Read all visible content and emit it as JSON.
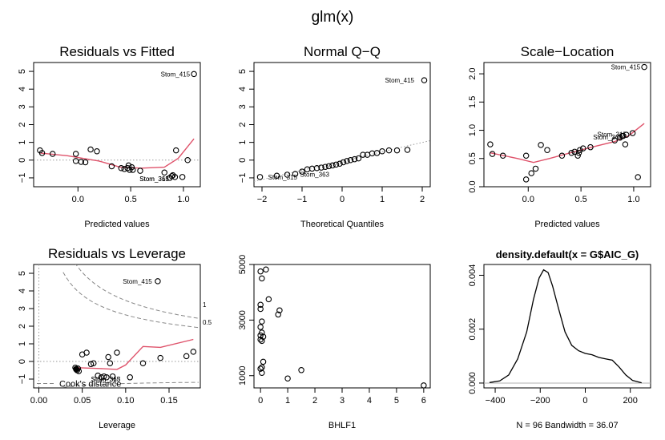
{
  "page_title": "glm(x)",
  "chart_data": [
    {
      "id": "rvf",
      "type": "scatter",
      "title": "Residuals vs Fitted",
      "xlabel": "Predicted values",
      "ylabel": "",
      "xlim": [
        -0.42,
        1.16
      ],
      "ylim": [
        -1.5,
        5.5
      ],
      "xticks": [
        0.0,
        0.5,
        1.0
      ],
      "xtick_labels": [
        "0.0",
        "0.5",
        "1.0"
      ],
      "yticks": [
        -1,
        0,
        1,
        2,
        3,
        4,
        5
      ],
      "ytick_labels": [
        "−1",
        "0",
        "1",
        "2",
        "3",
        "4",
        "5"
      ],
      "points": [
        [
          -0.36,
          0.55
        ],
        [
          -0.34,
          0.4
        ],
        [
          -0.24,
          0.35
        ],
        [
          -0.02,
          -0.05
        ],
        [
          -0.02,
          0.35
        ],
        [
          0.03,
          -0.1
        ],
        [
          0.07,
          -0.12
        ],
        [
          0.12,
          0.6
        ],
        [
          0.18,
          0.5
        ],
        [
          0.32,
          -0.35
        ],
        [
          0.41,
          -0.45
        ],
        [
          0.44,
          -0.5
        ],
        [
          0.47,
          -0.45
        ],
        [
          0.48,
          -0.3
        ],
        [
          0.49,
          -0.55
        ],
        [
          0.51,
          -0.4
        ],
        [
          0.52,
          -0.55
        ],
        [
          0.59,
          -0.6
        ],
        [
          0.82,
          -0.7
        ],
        [
          0.87,
          -1.0
        ],
        [
          0.89,
          -0.9
        ],
        [
          0.9,
          -0.85
        ],
        [
          0.92,
          -0.95
        ],
        [
          0.93,
          0.55
        ],
        [
          0.99,
          -0.95
        ],
        [
          1.04,
          0.0
        ],
        [
          1.1,
          4.85
        ]
      ],
      "smooth": [
        [
          -0.36,
          0.4
        ],
        [
          -0.1,
          0.25
        ],
        [
          0.2,
          -0.05
        ],
        [
          0.4,
          -0.4
        ],
        [
          0.6,
          -0.45
        ],
        [
          0.82,
          -0.4
        ],
        [
          0.95,
          0.1
        ],
        [
          1.1,
          1.2
        ]
      ],
      "ref_line": 0,
      "labels": [
        {
          "text": "Stom_415",
          "x": 1.1,
          "y": 4.85,
          "anchor": "end"
        },
        {
          "text": "Stom_315",
          "x": 0.9,
          "y": -1.05,
          "anchor": "end"
        },
        {
          "text": "Stom_363",
          "x": 0.9,
          "y": -1.05,
          "anchor": "end"
        }
      ]
    },
    {
      "id": "qq",
      "type": "scatter",
      "title": "Normal Q−Q",
      "xlabel": "Theoretical Quantiles",
      "ylabel": "",
      "xlim": [
        -2.2,
        2.2
      ],
      "ylim": [
        -1.5,
        5.5
      ],
      "xticks": [
        -2,
        -1,
        0,
        1,
        2
      ],
      "xtick_labels": [
        "−2",
        "−1",
        "0",
        "1",
        "2"
      ],
      "yticks": [
        -1,
        0,
        1,
        2,
        3,
        4,
        5
      ],
      "ytick_labels": [
        "−1",
        "0",
        "1",
        "2",
        "3",
        "4",
        "5"
      ],
      "points": [
        [
          -2.05,
          -0.95
        ],
        [
          -1.63,
          -0.88
        ],
        [
          -1.37,
          -0.82
        ],
        [
          -1.17,
          -0.78
        ],
        [
          -1.0,
          -0.65
        ],
        [
          -0.87,
          -0.52
        ],
        [
          -0.75,
          -0.48
        ],
        [
          -0.63,
          -0.45
        ],
        [
          -0.52,
          -0.42
        ],
        [
          -0.42,
          -0.38
        ],
        [
          -0.33,
          -0.34
        ],
        [
          -0.24,
          -0.3
        ],
        [
          -0.15,
          -0.25
        ],
        [
          -0.06,
          -0.2
        ],
        [
          0.03,
          -0.12
        ],
        [
          0.12,
          -0.05
        ],
        [
          0.21,
          0.0
        ],
        [
          0.31,
          0.05
        ],
        [
          0.41,
          0.1
        ],
        [
          0.52,
          0.3
        ],
        [
          0.63,
          0.3
        ],
        [
          0.75,
          0.38
        ],
        [
          0.87,
          0.4
        ],
        [
          1.0,
          0.5
        ],
        [
          1.17,
          0.55
        ],
        [
          1.37,
          0.55
        ],
        [
          1.63,
          0.58
        ],
        [
          2.05,
          4.5
        ]
      ],
      "ref": [
        [
          -2.2,
          -1.2
        ],
        [
          2.2,
          1.1
        ]
      ],
      "labels": [
        {
          "text": "Stom_415",
          "x": 1.9,
          "y": 4.5,
          "anchor": "end"
        },
        {
          "text": "Stom_315",
          "x": -1.95,
          "y": -0.95,
          "anchor": "start"
        },
        {
          "text": "Stom_363",
          "x": -1.15,
          "y": -0.8,
          "anchor": "start"
        }
      ]
    },
    {
      "id": "sl",
      "type": "scatter",
      "title": "Scale−Location",
      "xlabel": "Predicted values",
      "ylabel": "",
      "xlim": [
        -0.42,
        1.16
      ],
      "ylim": [
        0.0,
        2.2
      ],
      "xticks": [
        0.0,
        0.5,
        1.0
      ],
      "xtick_labels": [
        "0.0",
        "0.5",
        "1.0"
      ],
      "yticks": [
        0.0,
        0.5,
        1.0,
        1.5,
        2.0
      ],
      "ytick_labels": [
        "0.0",
        "0.5",
        "1.0",
        "1.5",
        "2.0"
      ],
      "points": [
        [
          -0.36,
          0.75
        ],
        [
          -0.34,
          0.58
        ],
        [
          -0.24,
          0.55
        ],
        [
          -0.02,
          0.13
        ],
        [
          -0.02,
          0.55
        ],
        [
          0.03,
          0.24
        ],
        [
          0.07,
          0.32
        ],
        [
          0.12,
          0.74
        ],
        [
          0.18,
          0.65
        ],
        [
          0.32,
          0.55
        ],
        [
          0.41,
          0.6
        ],
        [
          0.44,
          0.62
        ],
        [
          0.47,
          0.55
        ],
        [
          0.48,
          0.6
        ],
        [
          0.49,
          0.65
        ],
        [
          0.52,
          0.68
        ],
        [
          0.59,
          0.7
        ],
        [
          0.82,
          0.82
        ],
        [
          0.87,
          0.87
        ],
        [
          0.89,
          0.9
        ],
        [
          0.9,
          0.9
        ],
        [
          0.92,
          0.75
        ],
        [
          0.93,
          0.92
        ],
        [
          0.99,
          0.95
        ],
        [
          1.04,
          0.17
        ],
        [
          1.1,
          2.12
        ]
      ],
      "smooth": [
        [
          -0.36,
          0.6
        ],
        [
          -0.1,
          0.5
        ],
        [
          0.05,
          0.43
        ],
        [
          0.2,
          0.5
        ],
        [
          0.4,
          0.6
        ],
        [
          0.6,
          0.7
        ],
        [
          0.82,
          0.8
        ],
        [
          0.95,
          0.9
        ],
        [
          1.1,
          1.12
        ]
      ],
      "labels": [
        {
          "text": "Stom_415",
          "x": 1.1,
          "y": 2.12,
          "anchor": "end"
        },
        {
          "text": "Stom_315",
          "x": 0.97,
          "y": 0.93,
          "anchor": "end"
        },
        {
          "text": "Stom_363",
          "x": 0.93,
          "y": 0.88,
          "anchor": "end"
        }
      ]
    },
    {
      "id": "rvl",
      "type": "scatter",
      "title": "Residuals vs Leverage",
      "xlabel": "Leverage",
      "ylabel": "",
      "xlim": [
        -0.006,
        0.186
      ],
      "ylim": [
        -1.5,
        5.5
      ],
      "xticks": [
        0.0,
        0.05,
        0.1,
        0.15
      ],
      "xtick_labels": [
        "0.00",
        "0.05",
        "0.10",
        "0.15"
      ],
      "yticks": [
        -1,
        0,
        1,
        2,
        3,
        4,
        5
      ],
      "ytick_labels": [
        "−1",
        "0",
        "1",
        "2",
        "3",
        "4",
        "5"
      ],
      "points": [
        [
          0.042,
          -0.35
        ],
        [
          0.043,
          -0.45
        ],
        [
          0.044,
          -0.5
        ],
        [
          0.045,
          -0.4
        ],
        [
          0.046,
          -0.55
        ],
        [
          0.05,
          0.4
        ],
        [
          0.055,
          0.5
        ],
        [
          0.06,
          -0.15
        ],
        [
          0.063,
          -0.1
        ],
        [
          0.068,
          -0.8
        ],
        [
          0.072,
          -0.9
        ],
        [
          0.075,
          -0.85
        ],
        [
          0.078,
          -0.9
        ],
        [
          0.08,
          0.25
        ],
        [
          0.082,
          -0.1
        ],
        [
          0.085,
          -0.85
        ],
        [
          0.09,
          0.5
        ],
        [
          0.105,
          -0.9
        ],
        [
          0.12,
          -0.1
        ],
        [
          0.137,
          4.55
        ],
        [
          0.14,
          0.2
        ],
        [
          0.17,
          0.3
        ],
        [
          0.178,
          0.55
        ]
      ],
      "smooth": [
        [
          0.042,
          -0.35
        ],
        [
          0.07,
          -0.4
        ],
        [
          0.09,
          -0.45
        ],
        [
          0.1,
          -0.2
        ],
        [
          0.12,
          0.85
        ],
        [
          0.14,
          0.8
        ],
        [
          0.178,
          1.25
        ]
      ],
      "ref_line": 0,
      "cook_levels": [
        "1",
        "0.5"
      ],
      "labels": [
        {
          "text": "Stom_415",
          "x": 0.135,
          "y": 4.55,
          "anchor": "end"
        },
        {
          "text": "Stom_315",
          "x": 0.077,
          "y": -1.0,
          "anchor": "middle"
        },
        {
          "text": "Stom_363",
          "x": 0.077,
          "y": -1.0,
          "anchor": "middle"
        }
      ],
      "legend_text": "Cook's distance"
    },
    {
      "id": "bhlf",
      "type": "scatter",
      "title": "",
      "xlabel": "BHLF1",
      "ylabel": "",
      "xlim": [
        -0.24,
        6.24
      ],
      "ylim": [
        560,
        5000
      ],
      "xticks": [
        0,
        1,
        2,
        3,
        4,
        5,
        6
      ],
      "xtick_labels": [
        "0",
        "1",
        "2",
        "3",
        "4",
        "5",
        "6"
      ],
      "yticks": [
        1000,
        3000,
        5000
      ],
      "ytick_labels": [
        "1000",
        "3000",
        "5000"
      ],
      "points": [
        [
          0.0,
          4750
        ],
        [
          0.2,
          4820
        ],
        [
          0.05,
          4500
        ],
        [
          0.3,
          3750
        ],
        [
          0.0,
          3550
        ],
        [
          0.0,
          3400
        ],
        [
          0.7,
          3350
        ],
        [
          0.65,
          3200
        ],
        [
          0.05,
          2950
        ],
        [
          0.0,
          2750
        ],
        [
          0.05,
          2550
        ],
        [
          0.0,
          2450
        ],
        [
          0.1,
          2400
        ],
        [
          0.0,
          2300
        ],
        [
          0.05,
          2250
        ],
        [
          0.1,
          1500
        ],
        [
          0.05,
          1300
        ],
        [
          0.0,
          1250
        ],
        [
          0.05,
          1100
        ],
        [
          1.5,
          1200
        ],
        [
          1.0,
          900
        ],
        [
          6.0,
          650
        ]
      ]
    },
    {
      "id": "dens",
      "type": "line",
      "title": "density.default(x = G$AIC_G)",
      "xlabel": "N = 96   Bandwidth = 36.07",
      "ylabel": "",
      "xlim": [
        -450,
        290
      ],
      "ylim": [
        -0.00018,
        0.0044
      ],
      "xticks": [
        -400,
        -200,
        0,
        200
      ],
      "xtick_labels": [
        "−400",
        "−200",
        "0",
        "200"
      ],
      "yticks": [
        0.0,
        0.002,
        0.004
      ],
      "ytick_labels": [
        "0.000",
        "0.002",
        "0.004"
      ],
      "curve": [
        [
          -425,
          2e-05
        ],
        [
          -380,
          8e-05
        ],
        [
          -340,
          0.0003
        ],
        [
          -300,
          0.0009
        ],
        [
          -260,
          0.0019
        ],
        [
          -230,
          0.0031
        ],
        [
          -205,
          0.0039
        ],
        [
          -185,
          0.0042
        ],
        [
          -165,
          0.0041
        ],
        [
          -145,
          0.0036
        ],
        [
          -120,
          0.0028
        ],
        [
          -90,
          0.0019
        ],
        [
          -60,
          0.0014
        ],
        [
          -30,
          0.0012
        ],
        [
          0,
          0.0011
        ],
        [
          30,
          0.00105
        ],
        [
          60,
          0.00095
        ],
        [
          90,
          0.0009
        ],
        [
          120,
          0.00085
        ],
        [
          150,
          0.0006
        ],
        [
          180,
          0.0003
        ],
        [
          210,
          0.0001
        ],
        [
          250,
          1e-05
        ]
      ],
      "baseline": 0
    }
  ]
}
